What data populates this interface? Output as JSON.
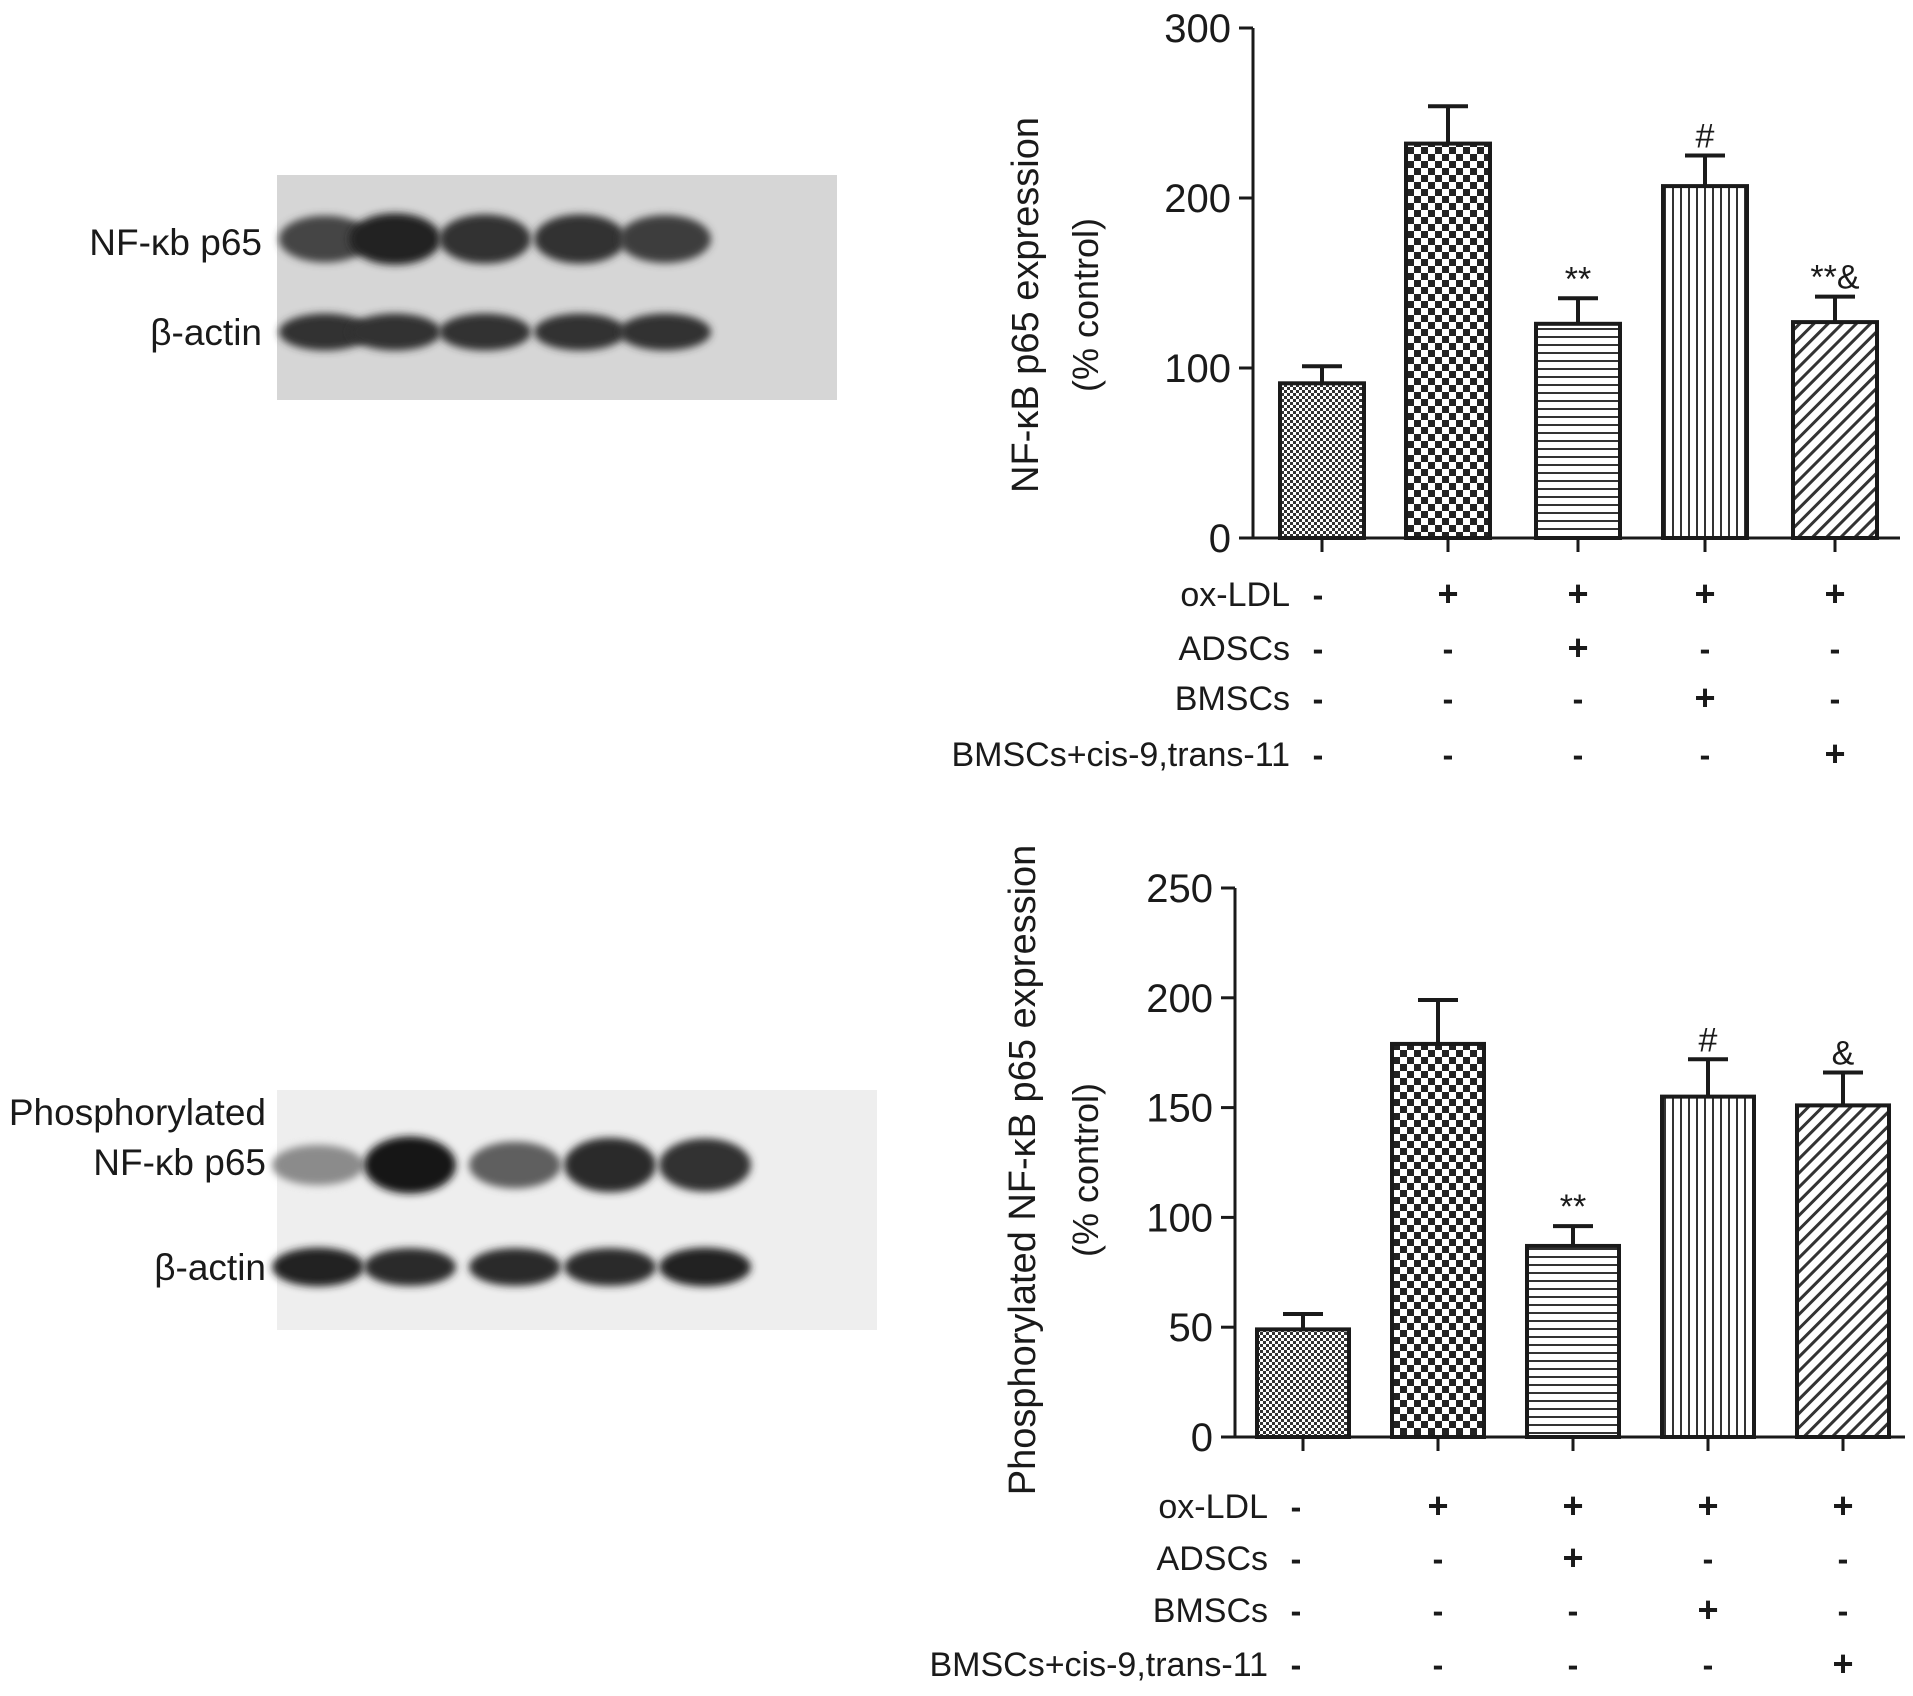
{
  "blots": [
    {
      "bands": [
        {
          "label_lines": [
            "NF-κb p65"
          ],
          "intensities": [
            0.75,
            0.95,
            0.85,
            0.85,
            0.8
          ]
        },
        {
          "label_lines": [
            "β-actin"
          ],
          "intensities": [
            0.85,
            0.85,
            0.85,
            0.85,
            0.85
          ]
        }
      ]
    },
    {
      "bands": [
        {
          "label_lines": [
            "Phosphorylated",
            "NF-κb p65"
          ],
          "intensities": [
            0.35,
            1.0,
            0.6,
            0.9,
            0.85
          ]
        },
        {
          "label_lines": [
            "β-actin"
          ],
          "intensities": [
            0.95,
            0.9,
            0.9,
            0.9,
            0.95
          ]
        }
      ]
    }
  ],
  "chart_data": [
    {
      "type": "bar",
      "ylabel": "NF-κB p65 expression",
      "ylabel_sub": "(% control)",
      "ylim": [
        0,
        300
      ],
      "yticks": [
        0,
        100,
        200,
        300
      ],
      "values": [
        91,
        232,
        126,
        207,
        127
      ],
      "errors": [
        10,
        22,
        15,
        18,
        15
      ],
      "annotations": [
        "",
        "",
        "**",
        "#",
        "**&"
      ],
      "patterns": [
        "fine-dots",
        "checker",
        "hlines",
        "vlines",
        "diagonal"
      ],
      "conditions": [
        {
          "name": "ox-LDL",
          "signs": [
            "-",
            "+",
            "+",
            "+",
            "+"
          ]
        },
        {
          "name": "ADSCs",
          "signs": [
            "-",
            "-",
            "+",
            "-",
            "-"
          ]
        },
        {
          "name": "BMSCs",
          "signs": [
            "-",
            "-",
            "-",
            "+",
            "-"
          ]
        },
        {
          "name": "BMSCs+cis-9,trans-11",
          "signs": [
            "-",
            "-",
            "-",
            "-",
            "+"
          ]
        }
      ]
    },
    {
      "type": "bar",
      "ylabel": "Phosphorylated NF-κB p65 expression",
      "ylabel_sub": "(% control)",
      "ylim": [
        0,
        250
      ],
      "yticks": [
        0,
        50,
        100,
        150,
        200,
        250
      ],
      "values": [
        49,
        179,
        87,
        155,
        151
      ],
      "errors": [
        7,
        20,
        9,
        17,
        15
      ],
      "annotations": [
        "",
        "",
        "**",
        "#",
        "&"
      ],
      "patterns": [
        "fine-dots",
        "checker",
        "hlines",
        "vlines",
        "diagonal"
      ],
      "conditions": [
        {
          "name": "ox-LDL",
          "signs": [
            "-",
            "+",
            "+",
            "+",
            "+"
          ]
        },
        {
          "name": "ADSCs",
          "signs": [
            "-",
            "-",
            "+",
            "-",
            "-"
          ]
        },
        {
          "name": "BMSCs",
          "signs": [
            "-",
            "-",
            "-",
            "+",
            "-"
          ]
        },
        {
          "name": "BMSCs+cis-9,trans-11",
          "signs": [
            "-",
            "-",
            "-",
            "-",
            "+"
          ]
        }
      ]
    }
  ]
}
